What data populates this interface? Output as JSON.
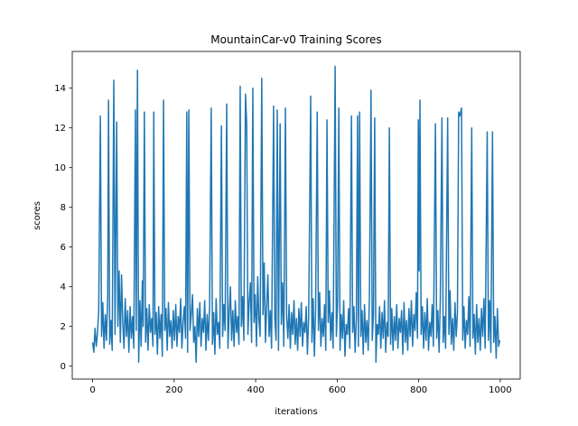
{
  "chart_data": {
    "type": "line",
    "title": "MountainCar-v0 Training Scores",
    "x_label": "iterations",
    "y_label": "scores",
    "color": "#1f77b4",
    "x": [
      0,
      3,
      6,
      9,
      12,
      15,
      19,
      22,
      25,
      28,
      31,
      34,
      37,
      39,
      42,
      45,
      48,
      52,
      55,
      59,
      62,
      65,
      68,
      71,
      74,
      77,
      80,
      83,
      86,
      89,
      92,
      95,
      98,
      101,
      105,
      107,
      110,
      113,
      116,
      119,
      122,
      124,
      127,
      130,
      133,
      136,
      139,
      142,
      145,
      148,
      150,
      153,
      156,
      159,
      162,
      165,
      168,
      171,
      174,
      177,
      180,
      183,
      186,
      189,
      192,
      195,
      198,
      201,
      204,
      207,
      210,
      213,
      216,
      219,
      222,
      225,
      228,
      231,
      233,
      236,
      239,
      242,
      245,
      248,
      251,
      254,
      257,
      260,
      263,
      266,
      269,
      272,
      275,
      278,
      281,
      284,
      287,
      291,
      294,
      297,
      300,
      303,
      306,
      309,
      312,
      316,
      319,
      322,
      325,
      329,
      332,
      335,
      338,
      341,
      344,
      347,
      350,
      353,
      356,
      359,
      362,
      365,
      368,
      371,
      375,
      378,
      381,
      384,
      387,
      390,
      393,
      396,
      399,
      402,
      405,
      408,
      411,
      415,
      418,
      421,
      424,
      427,
      430,
      433,
      436,
      439,
      444,
      447,
      450,
      453,
      456,
      460,
      463,
      466,
      469,
      473,
      476,
      479,
      482,
      485,
      488,
      491,
      494,
      497,
      500,
      503,
      506,
      509,
      512,
      515,
      518,
      521,
      524,
      527,
      530,
      535,
      538,
      541,
      544,
      547,
      551,
      554,
      557,
      560,
      563,
      566,
      569,
      572,
      575,
      578,
      581,
      584,
      587,
      590,
      595,
      598,
      601,
      604,
      607,
      610,
      613,
      616,
      619,
      622,
      625,
      628,
      631,
      635,
      638,
      641,
      644,
      647,
      650,
      652,
      655,
      658,
      661,
      664,
      667,
      670,
      673,
      676,
      679,
      683,
      686,
      689,
      692,
      695,
      698,
      701,
      704,
      707,
      710,
      713,
      716,
      719,
      722,
      725,
      728,
      731,
      734,
      737,
      740,
      743,
      746,
      749,
      752,
      755,
      758,
      761,
      764,
      767,
      770,
      773,
      776,
      779,
      782,
      785,
      788,
      791,
      794,
      797,
      799,
      801,
      803,
      806,
      809,
      812,
      815,
      818,
      821,
      824,
      827,
      830,
      833,
      836,
      841,
      844,
      847,
      850,
      853,
      857,
      860,
      863,
      866,
      871,
      874,
      877,
      880,
      883,
      886,
      889,
      892,
      895,
      898,
      901,
      905,
      908,
      911,
      914,
      917,
      920,
      923,
      926,
      930,
      933,
      936,
      939,
      942,
      945,
      948,
      951,
      954,
      957,
      960,
      963,
      968,
      971,
      974,
      977,
      981,
      984,
      987,
      990,
      993,
      996,
      999
    ],
    "values": [
      1.2,
      0.7,
      1.9,
      1.0,
      1.7,
      2.8,
      12.6,
      1.5,
      3.2,
      0.9,
      2.6,
      1.3,
      3.5,
      13.4,
      1.1,
      2.3,
      0.8,
      14.4,
      1.6,
      12.3,
      2.0,
      4.8,
      1.2,
      4.6,
      2.2,
      0.9,
      3.4,
      1.5,
      2.8,
      0.7,
      3.0,
      1.4,
      2.5,
      0.9,
      12.9,
      1.8,
      14.9,
      0.2,
      3.3,
      1.0,
      4.3,
      2.0,
      12.8,
      1.2,
      2.9,
      0.8,
      3.1,
      1.7,
      2.4,
      1.0,
      12.8,
      1.6,
      2.7,
      0.6,
      3.0,
      1.4,
      2.6,
      0.5,
      13.4,
      1.8,
      2.9,
      0.8,
      3.2,
      1.5,
      2.3,
      0.9,
      2.8,
      1.3,
      3.1,
      1.0,
      2.5,
      1.7,
      3.4,
      0.9,
      2.2,
      3.0,
      1.4,
      12.8,
      0.7,
      12.9,
      1.8,
      2.6,
      3.6,
      1.2,
      2.0,
      0.2,
      2.9,
      1.5,
      3.2,
      1.0,
      2.4,
      1.7,
      3.3,
      0.8,
      2.6,
      1.3,
      3.0,
      13.0,
      1.1,
      2.7,
      0.6,
      3.4,
      1.6,
      2.2,
      0.9,
      12.1,
      1.5,
      3.1,
      1.8,
      13.2,
      0.9,
      2.6,
      4.0,
      1.3,
      2.8,
      1.0,
      3.3,
      1.7,
      2.5,
      1.1,
      14.1,
      2.0,
      3.5,
      1.3,
      13.7,
      12.2,
      1.6,
      3.2,
      4.2,
      1.2,
      14.0,
      2.2,
      3.6,
      1.0,
      4.5,
      2.3,
      1.5,
      14.5,
      2.6,
      5.2,
      1.2,
      3.0,
      4.6,
      1.5,
      2.8,
      0.9,
      13.1,
      2.4,
      1.3,
      12.9,
      0.8,
      12.2,
      2.1,
      4.2,
      1.0,
      13.0,
      2.5,
      1.4,
      3.1,
      0.9,
      2.7,
      1.6,
      3.3,
      1.1,
      2.4,
      0.8,
      2.9,
      1.5,
      3.2,
      1.0,
      2.2,
      1.7,
      3.0,
      0.6,
      2.5,
      13.6,
      1.2,
      3.4,
      0.5,
      2.8,
      12.8,
      1.8,
      3.7,
      1.0,
      2.4,
      1.5,
      3.1,
      0.8,
      12.4,
      2.2,
      3.8,
      1.3,
      2.7,
      0.9,
      15.1,
      1.5,
      3.2,
      13.0,
      0.8,
      2.6,
      1.4,
      3.3,
      0.5,
      2.1,
      1.6,
      2.9,
      0.9,
      12.6,
      1.7,
      3.0,
      0.7,
      2.4,
      12.6,
      1.0,
      12.8,
      1.5,
      2.8,
      0.6,
      3.1,
      1.2,
      2.3,
      0.8,
      3.4,
      13.9,
      1.3,
      2.6,
      12.5,
      0.2,
      2.1,
      1.6,
      3.0,
      0.9,
      2.7,
      1.4,
      3.3,
      0.7,
      2.2,
      1.5,
      12.0,
      1.1,
      2.9,
      0.8,
      2.5,
      1.3,
      3.1,
      0.9,
      2.4,
      1.7,
      2.8,
      0.6,
      3.2,
      1.2,
      2.3,
      0.8,
      2.9,
      1.5,
      3.3,
      1.0,
      2.6,
      1.8,
      3.7,
      1.4,
      12.4,
      4.8,
      13.4,
      1.6,
      3.0,
      0.9,
      2.7,
      1.3,
      3.4,
      0.8,
      2.2,
      1.5,
      3.1,
      1.0,
      12.2,
      1.4,
      2.8,
      0.7,
      3.4,
      12.5,
      1.2,
      2.5,
      0.9,
      12.5,
      1.6,
      3.8,
      1.1,
      2.4,
      0.8,
      3.2,
      1.5,
      2.7,
      12.8,
      12.6,
      13.0,
      1.3,
      3.0,
      0.9,
      2.3,
      1.6,
      3.5,
      1.0,
      12.0,
      1.4,
      2.6,
      0.6,
      3.1,
      1.2,
      2.4,
      0.8,
      2.9,
      1.5,
      3.4,
      0.9,
      11.8,
      1.3,
      3.3,
      0.7,
      11.8,
      1.2,
      2.5,
      0.4,
      2.9,
      1.0,
      1.3
    ],
    "xlim": [
      -49.95,
      1048.95
    ],
    "ylim": [
      -0.65,
      15.85
    ],
    "xticks": [
      0,
      200,
      400,
      600,
      800,
      1000
    ],
    "yticks": [
      0,
      2,
      4,
      6,
      8,
      10,
      12,
      14
    ]
  }
}
